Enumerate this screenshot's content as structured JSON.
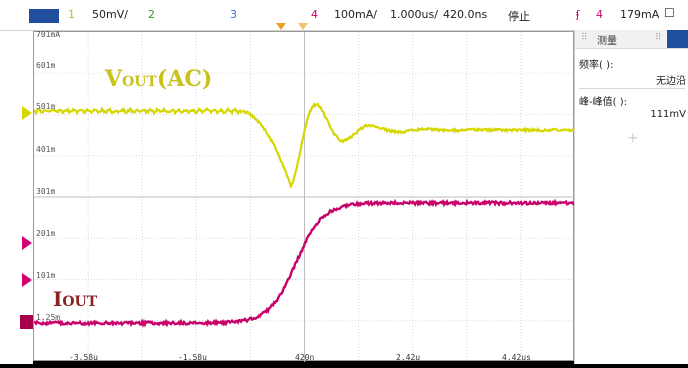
{
  "topbar": {
    "ch1_num": "1",
    "ch1_scale": "50mV/",
    "ch2_num": "2",
    "ch3_num": "3",
    "ch4_num": "4",
    "ch4_scale": "100mA/",
    "timebase": "1.000us/",
    "delay": "420.0ns",
    "run_state": "停止",
    "trig_src": "4",
    "trig_level": "179mA",
    "colors": {
      "ch1": "#d4c400",
      "ch2": "#22aa22",
      "ch3": "#3a6fd8",
      "ch4": "#d0006e"
    }
  },
  "screen": {
    "v_labels": [
      "701mA",
      "601m",
      "501m",
      "401m",
      "301m",
      "201m",
      "101m",
      "1.25m"
    ],
    "t_labels": [
      "-3.58u",
      "-1.58u",
      "420n",
      "2.42u",
      "4.42us"
    ],
    "vout_label_main": "V",
    "vout_label_sub": "OUT",
    "vout_label_tail": "(AC)",
    "iout_label_main": "I",
    "iout_label_sub": "OUT",
    "trace_colors": {
      "vout": "#d6d600",
      "iout": "#c8006a"
    }
  },
  "panel": {
    "tab_label": "测量",
    "freq_label": "频率(  ):",
    "freq_value": "无边沿",
    "p2p_label": "峰-峰值(  ):",
    "p2p_value": "111mV",
    "add_icon": "+"
  }
}
